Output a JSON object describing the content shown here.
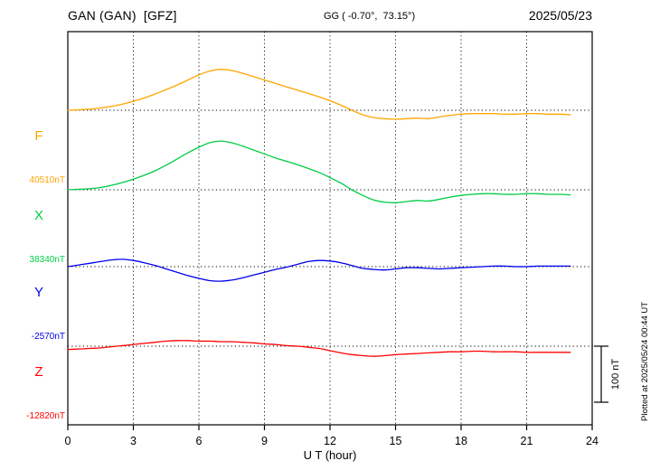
{
  "header": {
    "station_title": "GAN (GAN)  [GFZ]",
    "coordinates": "GG ( -0.70°,  73.15°)",
    "date": "2025/05/23"
  },
  "xaxis": {
    "label": "U T (hour)",
    "ticks": [
      0,
      3,
      6,
      9,
      12,
      15,
      18,
      21,
      24
    ],
    "range_hours": [
      0,
      24
    ]
  },
  "scale_bar": {
    "label": "100 nT",
    "value_nT": 100
  },
  "plotted_at": "Plotted at 2025/05/24 00:44 UT",
  "chart_data": {
    "type": "line",
    "title": "GAN (GAN) [GFZ] magnetogram 2025/05/23",
    "xlabel": "U T (hour)",
    "xlim": [
      0,
      24
    ],
    "y_unit": "nT offset from each component baseline",
    "x_hours": [
      0,
      0.5,
      1,
      1.5,
      2,
      2.5,
      3,
      3.5,
      4,
      4.5,
      5,
      5.5,
      6,
      6.5,
      7,
      7.5,
      8,
      8.5,
      9,
      9.5,
      10,
      10.5,
      11,
      11.5,
      12,
      12.5,
      13,
      13.5,
      14,
      14.5,
      15,
      15.5,
      16,
      16.5,
      17,
      17.5,
      18,
      18.5,
      19,
      19.5,
      20,
      20.5,
      21,
      21.5,
      22,
      22.5,
      23
    ],
    "series": [
      {
        "name": "F",
        "baseline_label": "40510nT",
        "baseline_nT": 40510,
        "color": "#FFA500",
        "values": [
          0,
          1,
          2,
          4,
          7,
          11,
          16,
          22,
          29,
          37,
          45,
          54,
          63,
          70,
          73,
          71,
          66,
          60,
          54,
          48,
          42,
          36,
          30,
          24,
          17,
          9,
          0,
          -8,
          -13,
          -15,
          -16,
          -15,
          -14,
          -15,
          -12,
          -9,
          -7,
          -6,
          -6,
          -6,
          -7,
          -7,
          -6,
          -6,
          -7,
          -7,
          -8
        ]
      },
      {
        "name": "X",
        "baseline_label": "38340nT",
        "baseline_nT": 38340,
        "color": "#00CC44",
        "values": [
          0,
          1,
          2,
          4,
          8,
          13,
          19,
          26,
          34,
          44,
          55,
          66,
          76,
          84,
          87,
          84,
          78,
          71,
          64,
          57,
          51,
          45,
          38,
          31,
          22,
          12,
          0,
          -10,
          -18,
          -22,
          -23,
          -21,
          -19,
          -20,
          -17,
          -13,
          -10,
          -8,
          -7,
          -7,
          -8,
          -8,
          -7,
          -7,
          -8,
          -8,
          -9
        ]
      },
      {
        "name": "Y",
        "baseline_label": "-2570nT",
        "baseline_nT": -2570,
        "color": "#0000EE",
        "values": [
          0,
          3,
          6,
          9,
          12,
          13,
          11,
          7,
          2,
          -4,
          -10,
          -16,
          -21,
          -25,
          -26,
          -24,
          -20,
          -15,
          -10,
          -5,
          -1,
          4,
          9,
          11,
          10,
          7,
          2,
          -3,
          -5,
          -6,
          -4,
          -2,
          -2,
          -3,
          -4,
          -3,
          -2,
          -1,
          0,
          1,
          1,
          0,
          0,
          1,
          1,
          1,
          1
        ]
      },
      {
        "name": "Z",
        "baseline_label": "-12820nT",
        "baseline_nT": -12820,
        "color": "#FF0000",
        "values": [
          -6,
          -5,
          -4,
          -3,
          -1,
          1,
          3,
          5,
          7,
          9,
          10,
          10,
          9,
          9,
          8,
          8,
          7,
          6,
          4,
          3,
          1,
          0,
          -2,
          -4,
          -8,
          -12,
          -15,
          -17,
          -18,
          -17,
          -15,
          -14,
          -13,
          -12,
          -11,
          -10,
          -10,
          -9,
          -9,
          -10,
          -10,
          -10,
          -11,
          -11,
          -11,
          -11,
          -11
        ]
      }
    ],
    "grid": {
      "vertical_dotted_every_hours": 3,
      "horizontal_dotted_baselines": true,
      "legend_position": "left margin labels"
    }
  }
}
